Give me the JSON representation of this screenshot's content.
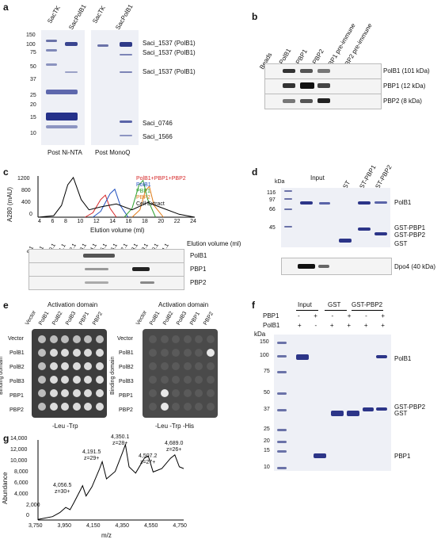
{
  "panel_a": {
    "label": "a",
    "lanes_ni": [
      "SacTK",
      "SacPolB1"
    ],
    "lanes_mono": [
      "SacTK",
      "SacPolB1"
    ],
    "markers": [
      "150",
      "100",
      "75",
      "50",
      "37",
      "25",
      "20",
      "15",
      "10"
    ],
    "bands": [
      "Saci_1537 (PolB1)",
      "Saci_1537 (PolB1)",
      "Saci_1537 (PolB1)",
      "Saci_0746",
      "Saci_1566"
    ],
    "captions": [
      "Post Ni-NTA",
      "Post MonoQ"
    ]
  },
  "panel_b": {
    "label": "b",
    "lanes": [
      "Beads",
      "α-PolB1",
      "α-PBP1",
      "α-PBP2",
      "PBP1 pre-immune",
      "PBP2 pre-immune"
    ],
    "rows": [
      "PolB1 (101 kDa)",
      "PBP1 (12 kDa)",
      "PBP2 (8 kDa)"
    ]
  },
  "panel_c": {
    "label": "c",
    "legend": [
      "PolB1+PBP1+PBP2",
      "PolB1",
      "PBP1",
      "PBP2",
      "Cell Extract"
    ],
    "colors": [
      "#d62728",
      "#1f4fbf",
      "#2ca02c",
      "#e07b18",
      "#000000"
    ],
    "ylabel": "A280 (mAU)",
    "yticks": [
      "1200",
      "800",
      "400",
      "0"
    ],
    "xticks": [
      "4",
      "6",
      "8",
      "10",
      "12",
      "14",
      "16",
      "18",
      "20",
      "22",
      "24"
    ],
    "xlabel": "Elution volume (ml)",
    "fractions": [
      "8.1",
      "9.1",
      "10.1",
      "11.1",
      "12.1",
      "13.1",
      "14.1",
      "15.1",
      "16.1",
      "17.1",
      "18.1",
      "19.1",
      "20.1",
      "21.1"
    ],
    "fraction_label": "Elution volume (ml)",
    "rows": [
      "PolB1",
      "PBP1",
      "PBP2"
    ]
  },
  "panel_d": {
    "label": "d",
    "markers": [
      "kDa",
      "116",
      "97",
      "66",
      "45"
    ],
    "lanes": [
      "Input",
      "GST",
      "GST-PBP1",
      "GST-PBP2"
    ],
    "bands": [
      "PolB1",
      "GST-PBP1",
      "GST-PBP2",
      "GST"
    ],
    "blot": "Dpo4 (40 kDa)"
  },
  "panel_e": {
    "label": "e",
    "header": "Activation domain",
    "columns": [
      "Vector",
      "PolB1",
      "PolB2",
      "PolB3",
      "PBP1",
      "PBP2"
    ],
    "rows": [
      "Vector",
      "PolB1",
      "PolB2",
      "PolB3",
      "PBP1",
      "PBP2"
    ],
    "row_axis": "Binding domain",
    "caption_left": "-Leu  -Trp",
    "caption_right": "-Leu  -Trp  -His"
  },
  "panel_f": {
    "label": "f",
    "groups": [
      "Input",
      "GST",
      "GST-PBP2"
    ],
    "row_labels": [
      "PBP1",
      "PolB1"
    ],
    "signs_pbp1": [
      "-",
      "+",
      "-",
      "+",
      "-",
      "+"
    ],
    "signs_polb1": [
      "+",
      "-",
      "+",
      "+",
      "+",
      "+"
    ],
    "kda": "kDa",
    "markers": [
      "150",
      "100",
      "75",
      "50",
      "37",
      "25",
      "20",
      "15",
      "10"
    ],
    "bands": [
      "PolB1",
      "GST-PBP2",
      "GST",
      "PBP1"
    ]
  },
  "panel_g": {
    "label": "g",
    "ylabel": "Abundance",
    "xlabel": "m/z",
    "yticks": [
      "14,000",
      "12,000",
      "10,000",
      "8,000",
      "6,000",
      "4,000",
      "2,000",
      "0"
    ],
    "xticks": [
      "3,750",
      "3,950",
      "4,150",
      "4,350",
      "4,550",
      "4,750"
    ],
    "peaks": [
      {
        "mz": "4,056.5",
        "z": "z=30+"
      },
      {
        "mz": "4,191.5",
        "z": "z=29+"
      },
      {
        "mz": "4,350.1",
        "z": "z=28+"
      },
      {
        "mz": "4,507.2",
        "z": "z=27+"
      },
      {
        "mz": "4,689.0",
        "z": "z=26+"
      }
    ]
  },
  "chart_data": [
    {
      "type": "line",
      "title": "",
      "xlabel": "Elution volume (ml)",
      "ylabel": "A280 (mAU)",
      "xlim": [
        4,
        24
      ],
      "ylim": [
        0,
        1400
      ],
      "series": [
        {
          "name": "PolB1+PBP1+PBP2",
          "x": [
            10,
            11,
            12,
            12.6,
            13.2,
            14
          ],
          "values": [
            0,
            150,
            600,
            750,
            300,
            0
          ]
        },
        {
          "name": "PolB1",
          "x": [
            11,
            12,
            13.2,
            13.8,
            14.5,
            15.5
          ],
          "values": [
            0,
            200,
            800,
            950,
            400,
            0
          ]
        },
        {
          "name": "PBP1",
          "x": [
            15,
            16,
            16.9,
            17.4,
            18,
            19
          ],
          "values": [
            0,
            300,
            1100,
            1250,
            600,
            0
          ]
        },
        {
          "name": "PBP2",
          "x": [
            16,
            17,
            17.7,
            18.2,
            18.8,
            20
          ],
          "values": [
            0,
            250,
            900,
            1050,
            400,
            0
          ]
        },
        {
          "name": "Cell Extract",
          "x": [
            4,
            6,
            7,
            7.8,
            8.5,
            9.5,
            10.5,
            12,
            14,
            16,
            18,
            20,
            22,
            24
          ],
          "values": [
            0,
            50,
            400,
            1100,
            1350,
            600,
            250,
            350,
            450,
            250,
            500,
            300,
            100,
            0
          ]
        }
      ]
    },
    {
      "type": "line",
      "title": "",
      "xlabel": "m/z",
      "ylabel": "Abundance",
      "xlim": [
        3750,
        4750
      ],
      "ylim": [
        0,
        14000
      ],
      "series": [
        {
          "name": "",
          "x": [
            3750,
            3850,
            3900,
            3940,
            3970,
            4000,
            4040,
            4056,
            4080,
            4120,
            4170,
            4191,
            4220,
            4280,
            4330,
            4350,
            4375,
            4420,
            4480,
            4507,
            4540,
            4600,
            4660,
            4689,
            4720,
            4750
          ],
          "values": [
            100,
            600,
            1300,
            2200,
            1800,
            3200,
            5200,
            6000,
            4200,
            5800,
            8800,
            10200,
            7200,
            8500,
            11800,
            13200,
            9300,
            8200,
            10800,
            11200,
            8400,
            9000,
            10800,
            11400,
            9300,
            9000
          ]
        }
      ]
    }
  ]
}
